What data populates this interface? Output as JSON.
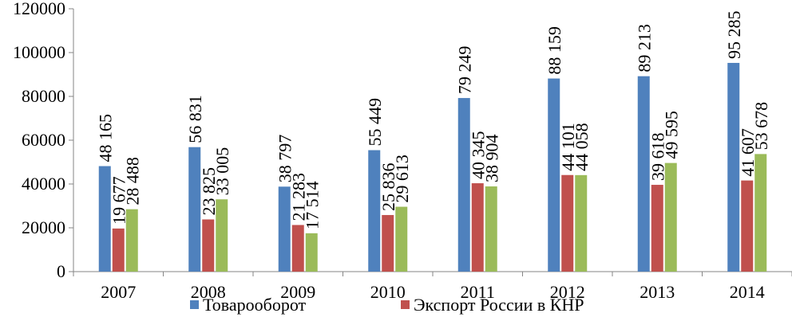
{
  "chart_data": {
    "type": "bar",
    "categories": [
      "2007",
      "2008",
      "2009",
      "2010",
      "2011",
      "2012",
      "2013",
      "2014"
    ],
    "series": [
      {
        "name": "Товарооборот",
        "color": "#4F81BD",
        "values": [
          48165,
          56831,
          38797,
          55449,
          79249,
          88159,
          89213,
          95285
        ],
        "labels": [
          "48 165",
          "56 831",
          "38 797",
          "55 449",
          "79 249",
          "88 159",
          "89 213",
          "95 285"
        ]
      },
      {
        "name": "Экспорт России в КНР",
        "color": "#C0504D",
        "values": [
          19677,
          23825,
          21283,
          25836,
          40345,
          44101,
          39618,
          41607
        ],
        "labels": [
          "19 677",
          "23 825",
          "21 283",
          "25 836",
          "40 345",
          "44 101",
          "39 618",
          "41 607"
        ]
      },
      {
        "name": "",
        "color": "#9BBB59",
        "values": [
          28488,
          33005,
          17514,
          29613,
          38904,
          44058,
          49595,
          53678
        ],
        "labels": [
          "28 488",
          "33 005",
          "17 514",
          "29 613",
          "38 904",
          "44 058",
          "49 595",
          "53 678"
        ]
      }
    ],
    "yticks": [
      "0",
      "20000",
      "40000",
      "60000",
      "80000",
      "100000",
      "120000"
    ],
    "ylim": [
      0,
      120000
    ],
    "grid": false,
    "legend": "bottom",
    "legend_entries": [
      "Товарооборот",
      "Экспорт России в КНР"
    ]
  }
}
